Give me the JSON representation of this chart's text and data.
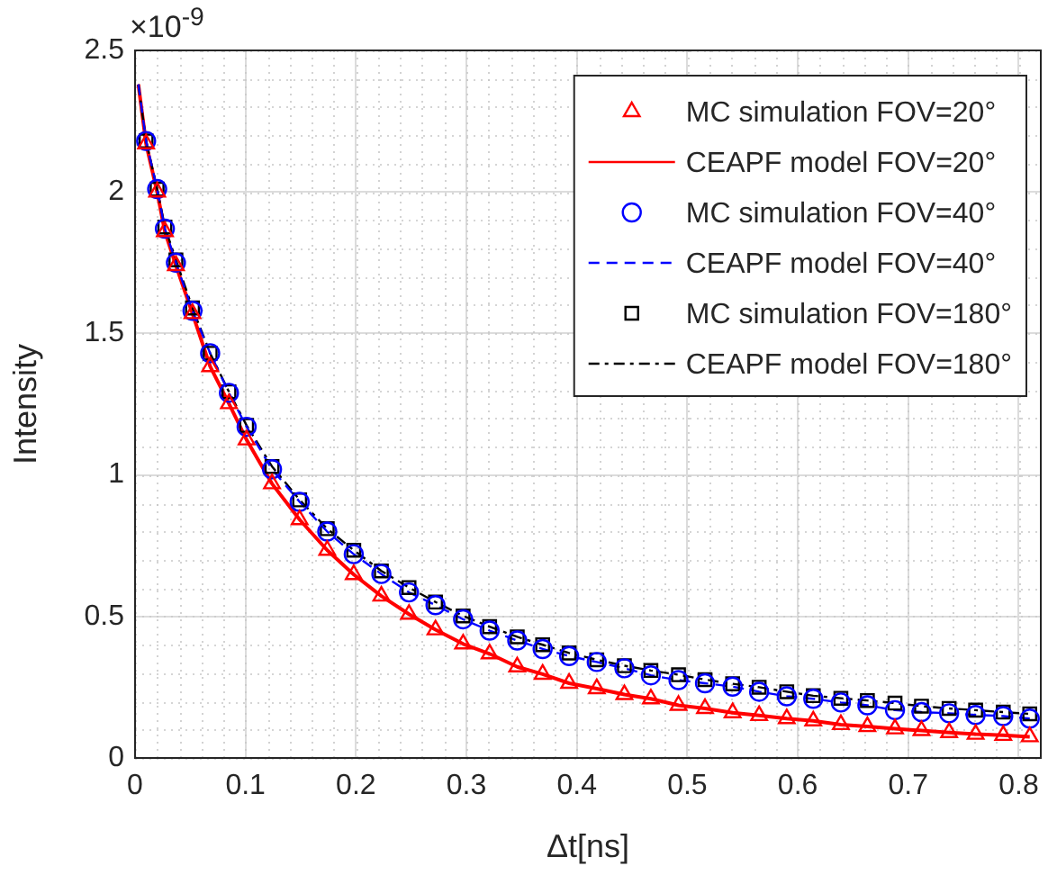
{
  "chart_data": {
    "type": "scatter",
    "xlabel": "Δt[ns]",
    "ylabel": "Intensity",
    "annotations": [
      "×10$^{-9}$"
    ],
    "xlim": [
      0,
      0.82
    ],
    "xticks": [
      0,
      0.1,
      0.2,
      0.3,
      0.4,
      0.5,
      0.6,
      0.7,
      0.8
    ],
    "ylim": [
      0,
      2.5
    ],
    "yticks": [
      0,
      0.5,
      1,
      1.5,
      2,
      2.5
    ],
    "grid": true,
    "legend": "top right",
    "x": [
      0.01,
      0.02,
      0.027,
      0.037,
      0.052,
      0.068,
      0.085,
      0.101,
      0.124,
      0.149,
      0.174,
      0.198,
      0.223,
      0.248,
      0.272,
      0.297,
      0.321,
      0.346,
      0.369,
      0.393,
      0.418,
      0.443,
      0.467,
      0.492,
      0.516,
      0.541,
      0.565,
      0.59,
      0.614,
      0.639,
      0.663,
      0.688,
      0.712,
      0.737,
      0.761,
      0.786,
      0.81
    ],
    "series": [
      {
        "name": "MC simulation FOV=20°",
        "type": "scatter",
        "marker": "triangle",
        "color": "#ff0000",
        "values": [
          2.17,
          2.0,
          1.86,
          1.74,
          1.57,
          1.383,
          1.252,
          1.124,
          0.969,
          0.842,
          0.734,
          0.648,
          0.572,
          0.508,
          0.453,
          0.403,
          0.368,
          0.322,
          0.296,
          0.264,
          0.245,
          0.224,
          0.209,
          0.186,
          0.175,
          0.16,
          0.15,
          0.139,
          0.131,
          0.118,
          0.111,
          0.103,
          0.097,
          0.09,
          0.084,
          0.08,
          0.075
        ]
      },
      {
        "name": "CEAPF model FOV=20°",
        "type": "line",
        "line_style": "solid",
        "marker": "none",
        "color": "#ff0000",
        "x": [
          0.003,
          0.01,
          0.02,
          0.027,
          0.037,
          0.052,
          0.068,
          0.085,
          0.101,
          0.124,
          0.149,
          0.174,
          0.198,
          0.223,
          0.248,
          0.272,
          0.297,
          0.321,
          0.346,
          0.369,
          0.393,
          0.418,
          0.443,
          0.467,
          0.492,
          0.516,
          0.541,
          0.565,
          0.59,
          0.614,
          0.639,
          0.663,
          0.688,
          0.712,
          0.737,
          0.761,
          0.786,
          0.81
        ],
        "values": [
          2.38,
          2.17,
          2.0,
          1.86,
          1.74,
          1.57,
          1.383,
          1.252,
          1.124,
          0.969,
          0.842,
          0.734,
          0.648,
          0.572,
          0.508,
          0.453,
          0.403,
          0.368,
          0.322,
          0.296,
          0.264,
          0.245,
          0.224,
          0.209,
          0.186,
          0.175,
          0.16,
          0.15,
          0.139,
          0.131,
          0.118,
          0.111,
          0.103,
          0.097,
          0.09,
          0.084,
          0.08,
          0.075
        ]
      },
      {
        "name": "MC simulation FOV=40°",
        "type": "scatter",
        "marker": "circle",
        "color": "#0000ff",
        "values": [
          2.18,
          2.01,
          1.87,
          1.75,
          1.58,
          1.43,
          1.29,
          1.17,
          1.02,
          0.905,
          0.8,
          0.72,
          0.65,
          0.585,
          0.54,
          0.49,
          0.45,
          0.415,
          0.385,
          0.36,
          0.339,
          0.317,
          0.292,
          0.275,
          0.264,
          0.252,
          0.234,
          0.218,
          0.209,
          0.196,
          0.186,
          0.169,
          0.162,
          0.158,
          0.152,
          0.148,
          0.139
        ]
      },
      {
        "name": "CEAPF model FOV=40°",
        "type": "line",
        "line_style": "dashed",
        "marker": "none",
        "color": "#0000ff",
        "x": [
          0.003,
          0.01,
          0.02,
          0.027,
          0.037,
          0.052,
          0.068,
          0.085,
          0.101,
          0.124,
          0.149,
          0.174,
          0.198,
          0.223,
          0.248,
          0.272,
          0.297,
          0.321,
          0.346,
          0.369,
          0.393,
          0.418,
          0.443,
          0.467,
          0.492,
          0.516,
          0.541,
          0.565,
          0.59,
          0.614,
          0.639,
          0.663,
          0.688,
          0.712,
          0.737,
          0.761,
          0.786,
          0.81
        ],
        "values": [
          2.38,
          2.18,
          2.01,
          1.87,
          1.75,
          1.58,
          1.43,
          1.29,
          1.17,
          1.02,
          0.905,
          0.8,
          0.72,
          0.65,
          0.585,
          0.54,
          0.49,
          0.45,
          0.415,
          0.385,
          0.36,
          0.339,
          0.317,
          0.292,
          0.275,
          0.264,
          0.252,
          0.234,
          0.218,
          0.209,
          0.196,
          0.186,
          0.169,
          0.162,
          0.158,
          0.152,
          0.148,
          0.139
        ]
      },
      {
        "name": "MC simulation FOV=180°",
        "type": "scatter",
        "marker": "square",
        "color": "#000000",
        "values": [
          2.18,
          2.01,
          1.876,
          1.76,
          1.59,
          1.43,
          1.294,
          1.175,
          1.03,
          0.912,
          0.81,
          0.734,
          0.661,
          0.602,
          0.551,
          0.502,
          0.464,
          0.428,
          0.4,
          0.371,
          0.347,
          0.326,
          0.309,
          0.294,
          0.277,
          0.262,
          0.25,
          0.234,
          0.22,
          0.211,
          0.203,
          0.194,
          0.183,
          0.175,
          0.169,
          0.162,
          0.156
        ]
      },
      {
        "name": "CEAPF model FOV=180°",
        "type": "line",
        "line_style": "dashdot",
        "marker": "none",
        "color": "#000000",
        "x": [
          0.003,
          0.01,
          0.02,
          0.027,
          0.037,
          0.052,
          0.068,
          0.085,
          0.101,
          0.124,
          0.149,
          0.174,
          0.198,
          0.223,
          0.248,
          0.272,
          0.297,
          0.321,
          0.346,
          0.369,
          0.393,
          0.418,
          0.443,
          0.467,
          0.492,
          0.516,
          0.541,
          0.565,
          0.59,
          0.614,
          0.639,
          0.663,
          0.688,
          0.712,
          0.737,
          0.761,
          0.786,
          0.81
        ],
        "values": [
          2.38,
          2.18,
          2.01,
          1.876,
          1.76,
          1.59,
          1.43,
          1.294,
          1.175,
          1.03,
          0.912,
          0.81,
          0.734,
          0.661,
          0.602,
          0.551,
          0.502,
          0.464,
          0.428,
          0.4,
          0.371,
          0.347,
          0.326,
          0.309,
          0.294,
          0.277,
          0.262,
          0.25,
          0.234,
          0.22,
          0.211,
          0.203,
          0.194,
          0.183,
          0.175,
          0.169,
          0.162,
          0.156
        ]
      }
    ]
  }
}
